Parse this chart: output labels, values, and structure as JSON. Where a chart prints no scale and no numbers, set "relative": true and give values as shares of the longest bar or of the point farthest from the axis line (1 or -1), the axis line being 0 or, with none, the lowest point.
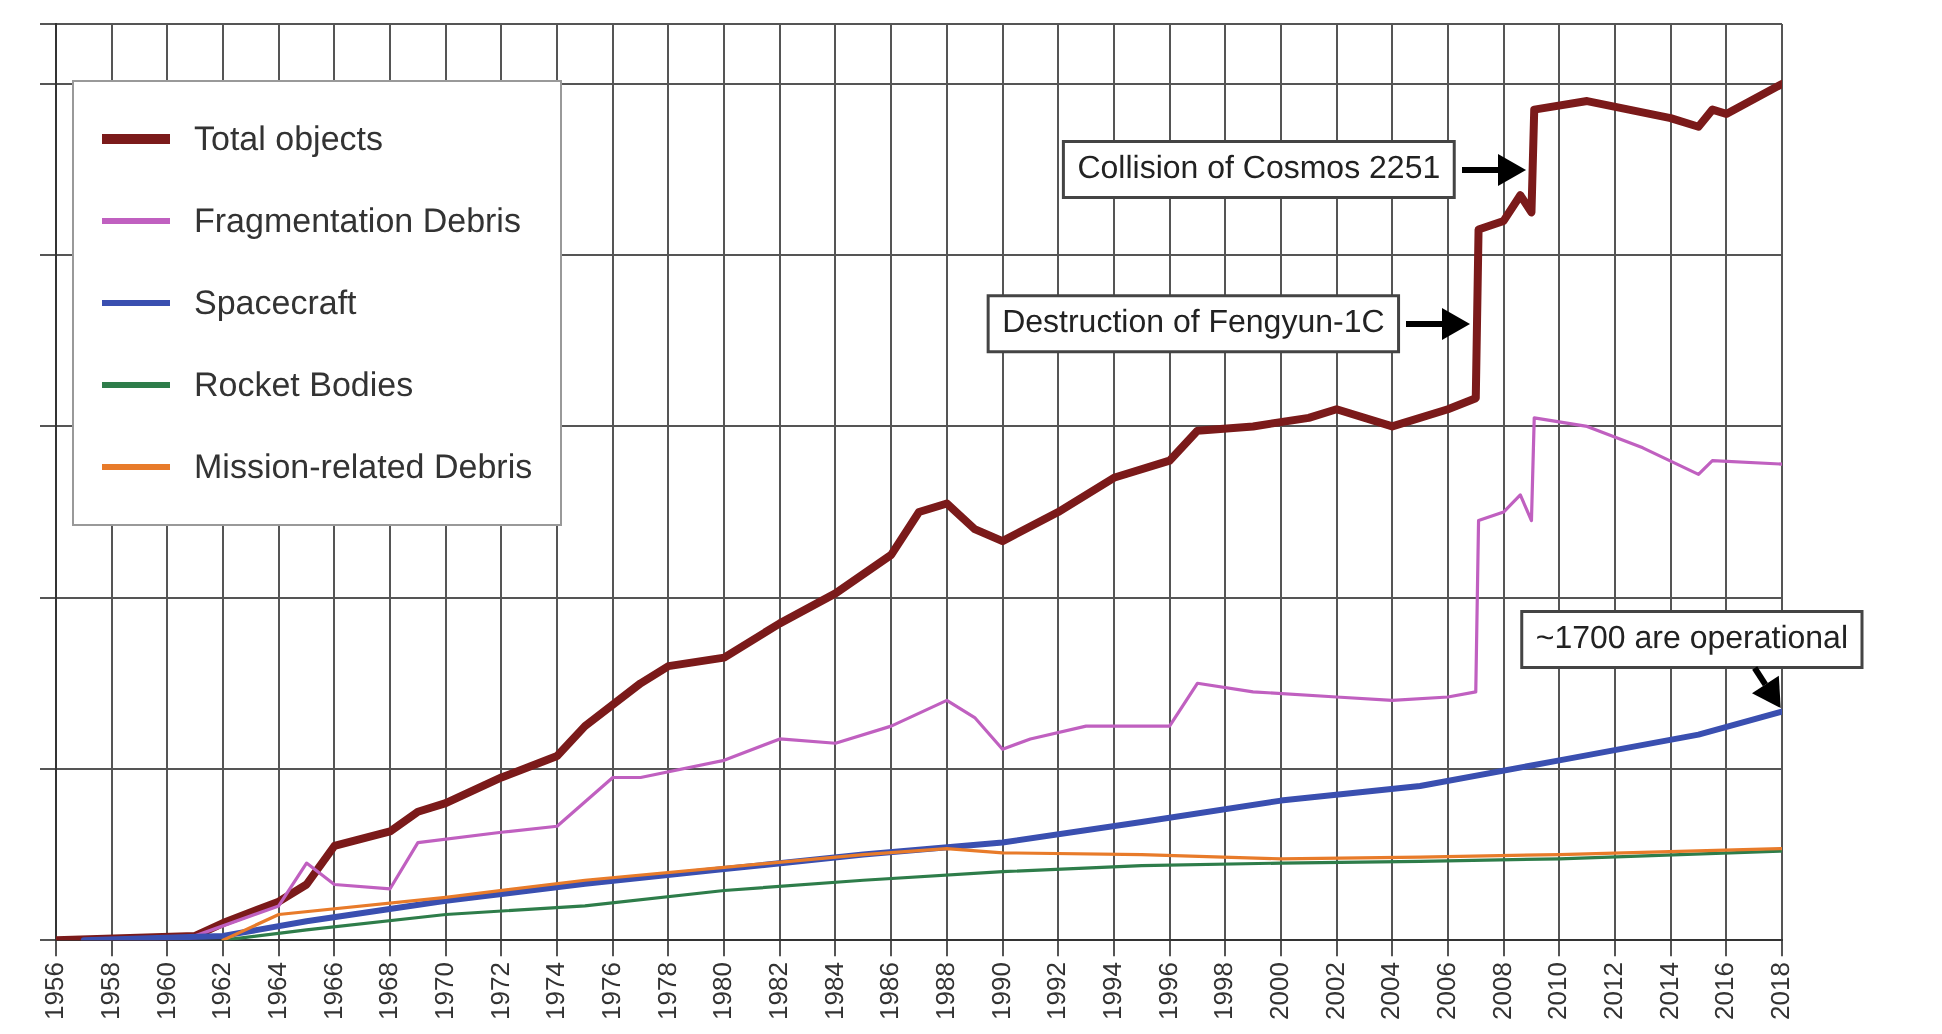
{
  "chart_data": {
    "type": "line",
    "relative": true,
    "xlim": [
      1956,
      2018
    ],
    "xticks": [
      1956,
      1958,
      1960,
      1962,
      1964,
      1966,
      1968,
      1970,
      1972,
      1974,
      1976,
      1978,
      1980,
      1982,
      1984,
      1986,
      1988,
      1990,
      1992,
      1994,
      1996,
      1998,
      2000,
      2002,
      2004,
      2006,
      2008,
      2010,
      2012,
      2014,
      2016,
      2018
    ],
    "grid": true,
    "legend": "top left",
    "marker": "none",
    "line_style": "solid",
    "series": [
      {
        "name": "Total objects",
        "color": "#7b1a1a",
        "x": [
          1956,
          1961,
          1962,
          1964,
          1965,
          1966,
          1968,
          1969,
          1970,
          1972,
          1974,
          1975,
          1977,
          1978,
          1980,
          1982,
          1984,
          1986,
          1987,
          1988,
          1989,
          1990,
          1992,
          1994,
          1996,
          1997,
          1999,
          2001,
          2002,
          2004,
          2006,
          2007,
          2007.1,
          2008,
          2008.6,
          2009,
          2009.1,
          2011,
          2014,
          2015,
          2015.5,
          2016,
          2018
        ],
        "values": [
          0,
          0.005,
          0.02,
          0.045,
          0.065,
          0.11,
          0.127,
          0.15,
          0.16,
          0.19,
          0.215,
          0.25,
          0.3,
          0.32,
          0.33,
          0.37,
          0.405,
          0.45,
          0.5,
          0.51,
          0.48,
          0.466,
          0.5,
          0.54,
          0.56,
          0.595,
          0.6,
          0.61,
          0.62,
          0.6,
          0.62,
          0.633,
          0.83,
          0.84,
          0.87,
          0.85,
          0.97,
          0.98,
          0.96,
          0.95,
          0.97,
          0.965,
          1
        ]
      },
      {
        "name": "Fragmentation Debris",
        "color": "#c060c0",
        "x": [
          1961,
          1964,
          1965,
          1966,
          1968,
          1969,
          1972,
          1974,
          1976,
          1977,
          1980,
          1982,
          1984,
          1986,
          1988,
          1989,
          1990,
          1991,
          1993,
          1996,
          1997,
          1999,
          2002,
          2004,
          2006,
          2007,
          2007.1,
          2008,
          2008.6,
          2009,
          2009.1,
          2011,
          2013,
          2015,
          2015.5,
          2018
        ],
        "values": [
          0.005,
          0.04,
          0.09,
          0.065,
          0.06,
          0.114,
          0.126,
          0.133,
          0.19,
          0.19,
          0.21,
          0.235,
          0.23,
          0.25,
          0.28,
          0.26,
          0.223,
          0.235,
          0.25,
          0.25,
          0.3,
          0.29,
          0.284,
          0.28,
          0.284,
          0.29,
          0.49,
          0.5,
          0.52,
          0.49,
          0.61,
          0.6,
          0.575,
          0.544,
          0.56,
          0.556
        ]
      },
      {
        "name": "Spacecraft",
        "color": "#3a4fb0",
        "x": [
          1957,
          1962,
          1965,
          1970,
          1975,
          1980,
          1985,
          1990,
          1995,
          2000,
          2005,
          2010,
          2015,
          2018
        ],
        "values": [
          0,
          0.005,
          0.022,
          0.046,
          0.066,
          0.083,
          0.1,
          0.114,
          0.138,
          0.163,
          0.18,
          0.21,
          0.24,
          0.267
        ]
      },
      {
        "name": "Rocket Bodies",
        "color": "#2e7d4a",
        "x": [
          1962,
          1965,
          1970,
          1975,
          1980,
          1985,
          1990,
          1995,
          2000,
          2005,
          2010,
          2018
        ],
        "values": [
          0,
          0.012,
          0.03,
          0.04,
          0.058,
          0.07,
          0.08,
          0.087,
          0.09,
          0.092,
          0.095,
          0.104
        ]
      },
      {
        "name": "Mission-related Debris",
        "color": "#e87b2a",
        "x": [
          1962,
          1964,
          1970,
          1975,
          1980,
          1985,
          1988,
          1990,
          1995,
          2000,
          2005,
          2010,
          2018
        ],
        "values": [
          0,
          0.03,
          0.05,
          0.07,
          0.085,
          0.1,
          0.107,
          0.102,
          0.1,
          0.095,
          0.097,
          0.1,
          0.107
        ]
      }
    ],
    "annotations": [
      {
        "text": "Collision of Cosmos 2251",
        "x": 2009.1,
        "y": 0.9
      },
      {
        "text": "Destruction of Fengyun-1C",
        "x": 2007.1,
        "y": 0.72
      },
      {
        "text": "~1700 are operational",
        "x": 2018,
        "y": 0.267
      }
    ]
  }
}
